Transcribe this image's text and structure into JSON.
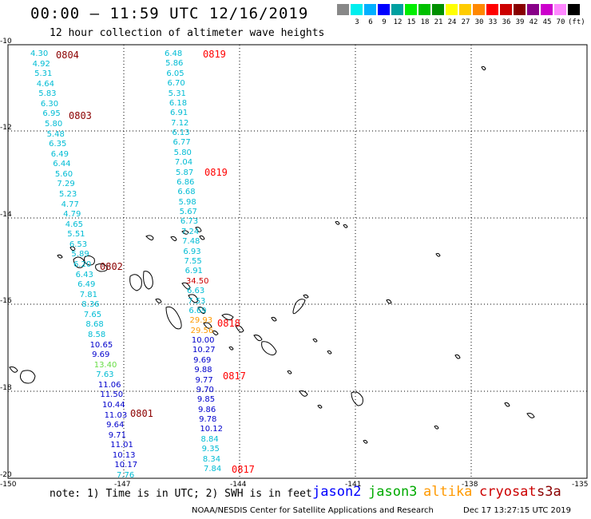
{
  "header": {
    "title": "00:00 — 11:59 UTC 12/16/2019",
    "subtitle": "12 hour collection of altimeter wave heights"
  },
  "colorbar": {
    "unit": "(ft)",
    "items": [
      {
        "label": "",
        "color": "#888888"
      },
      {
        "label": "3",
        "color": "#00eeee"
      },
      {
        "label": "6",
        "color": "#00b0ff"
      },
      {
        "label": "9",
        "color": "#0000ff"
      },
      {
        "label": "12",
        "color": "#00a0a0"
      },
      {
        "label": "15",
        "color": "#00ee00"
      },
      {
        "label": "18",
        "color": "#00c000"
      },
      {
        "label": "21",
        "color": "#009000"
      },
      {
        "label": "24",
        "color": "#ffff00"
      },
      {
        "label": "27",
        "color": "#ffcc00"
      },
      {
        "label": "30",
        "color": "#ff8800"
      },
      {
        "label": "33",
        "color": "#ff0000"
      },
      {
        "label": "36",
        "color": "#cc0000"
      },
      {
        "label": "39",
        "color": "#880000"
      },
      {
        "label": "42",
        "color": "#880088"
      },
      {
        "label": "45",
        "color": "#cc00cc"
      },
      {
        "label": "70",
        "color": "#ff88ff"
      },
      {
        "label": "",
        "color": "#000000"
      }
    ]
  },
  "axes": {
    "lat_labels": [
      "-10",
      "-12",
      "-14",
      "-16",
      "-18",
      "-20"
    ],
    "lon_labels": [
      "-150",
      "-147",
      "-144",
      "-141",
      "-138",
      "-135"
    ]
  },
  "times": [
    {
      "text": "0804",
      "color": "#8b0000"
    },
    {
      "text": "0803",
      "color": "#8b0000"
    },
    {
      "text": "0802",
      "color": "#8b0000"
    },
    {
      "text": "0801",
      "color": "#8b0000"
    },
    {
      "text": "0819",
      "color": "#ff0000"
    },
    {
      "text": "0819",
      "color": "#ff0000"
    },
    {
      "text": "0818",
      "color": "#ff0000"
    },
    {
      "text": "0817",
      "color": "#ff0000"
    },
    {
      "text": "0817",
      "color": "#ff0000"
    }
  ],
  "track_west": {
    "values": [
      "4.30",
      "4.92",
      "5.31",
      "4.64",
      "5.83",
      "6.30",
      "6.95",
      "5.80",
      "5.48",
      "6.35",
      "6.49",
      "6.44",
      "5.60",
      "7.29",
      "5.23",
      "4.77",
      "4.79",
      "4.65",
      "5.51",
      "6.53",
      "5.89",
      "6.20",
      "6.43",
      "6.49",
      "7.81",
      "8.36",
      "7.65",
      "8.68",
      "8.58",
      "10.65",
      "9.69",
      "13.40",
      "7.63",
      "11.06",
      "11.50",
      "10.44",
      "11.03",
      "9.64",
      "9.71",
      "11.01",
      "10.13",
      "10.17",
      "7.76"
    ],
    "colors": [
      "#00bcd4",
      "#00bcd4",
      "#00bcd4",
      "#00bcd4",
      "#00bcd4",
      "#00bcd4",
      "#00bcd4",
      "#00bcd4",
      "#00bcd4",
      "#00bcd4",
      "#00bcd4",
      "#00bcd4",
      "#00bcd4",
      "#00bcd4",
      "#00bcd4",
      "#00bcd4",
      "#00bcd4",
      "#00bcd4",
      "#00bcd4",
      "#00bcd4",
      "#00bcd4",
      "#00bcd4",
      "#00bcd4",
      "#00bcd4",
      "#00bcd4",
      "#00bcd4",
      "#00bcd4",
      "#00bcd4",
      "#00bcd4",
      "#0000cc",
      "#0000cc",
      "#66dd44",
      "#00bcd4",
      "#0000cc",
      "#0000cc",
      "#0000cc",
      "#0000cc",
      "#0000cc",
      "#0000cc",
      "#0000cc",
      "#0000cc",
      "#0000cc",
      "#00bcd4"
    ]
  },
  "track_east": {
    "values": [
      "6.48",
      "5.86",
      "6.05",
      "6.70",
      "5.31",
      "6.18",
      "6.91",
      "7.12",
      "6.13",
      "6.77",
      "5.80",
      "7.04",
      "5.87",
      "6.86",
      "6.68",
      "5.98",
      "5.67",
      "6.73",
      "7.24",
      "7.48",
      "6.93",
      "7.55",
      "6.91",
      "34.50",
      "6.63",
      "7.53",
      "6.69",
      "29.93",
      "29.56",
      "10.00",
      "10.27",
      "9.69",
      "9.88",
      "9.77",
      "9.70",
      "9.85",
      "9.86",
      "9.78",
      "10.12",
      "8.84",
      "9.35",
      "8.34",
      "7.84"
    ],
    "colors": [
      "#00bcd4",
      "#00bcd4",
      "#00bcd4",
      "#00bcd4",
      "#00bcd4",
      "#00bcd4",
      "#00bcd4",
      "#00bcd4",
      "#00bcd4",
      "#00bcd4",
      "#00bcd4",
      "#00bcd4",
      "#00bcd4",
      "#00bcd4",
      "#00bcd4",
      "#00bcd4",
      "#00bcd4",
      "#00bcd4",
      "#00bcd4",
      "#00bcd4",
      "#00bcd4",
      "#00bcd4",
      "#00bcd4",
      "#cc0000",
      "#00bcd4",
      "#00bcd4",
      "#00bcd4",
      "#ff9900",
      "#ff9900",
      "#0000cc",
      "#0000cc",
      "#0000cc",
      "#0000cc",
      "#0000cc",
      "#0000cc",
      "#0000cc",
      "#0000cc",
      "#0000cc",
      "#0000cc",
      "#00bcd4",
      "#00bcd4",
      "#00bcd4",
      "#00bcd4"
    ]
  },
  "note": "note:  1) Time is in UTC;  2) SWH is in feet",
  "legend": [
    {
      "text": "jason2",
      "color": "#0000ff"
    },
    {
      "text": "jason3",
      "color": "#00aa00"
    },
    {
      "text": "altika",
      "color": "#ff9900"
    },
    {
      "text": "cryosat",
      "color": "#cc0000"
    },
    {
      "text": "s3a",
      "color": "#8b0000"
    }
  ],
  "footer": {
    "credit": "NOAA/NESDIS Center for Satellite Applications and Research",
    "timestamp": "Dec 17 13:27:15 UTC 2019"
  }
}
